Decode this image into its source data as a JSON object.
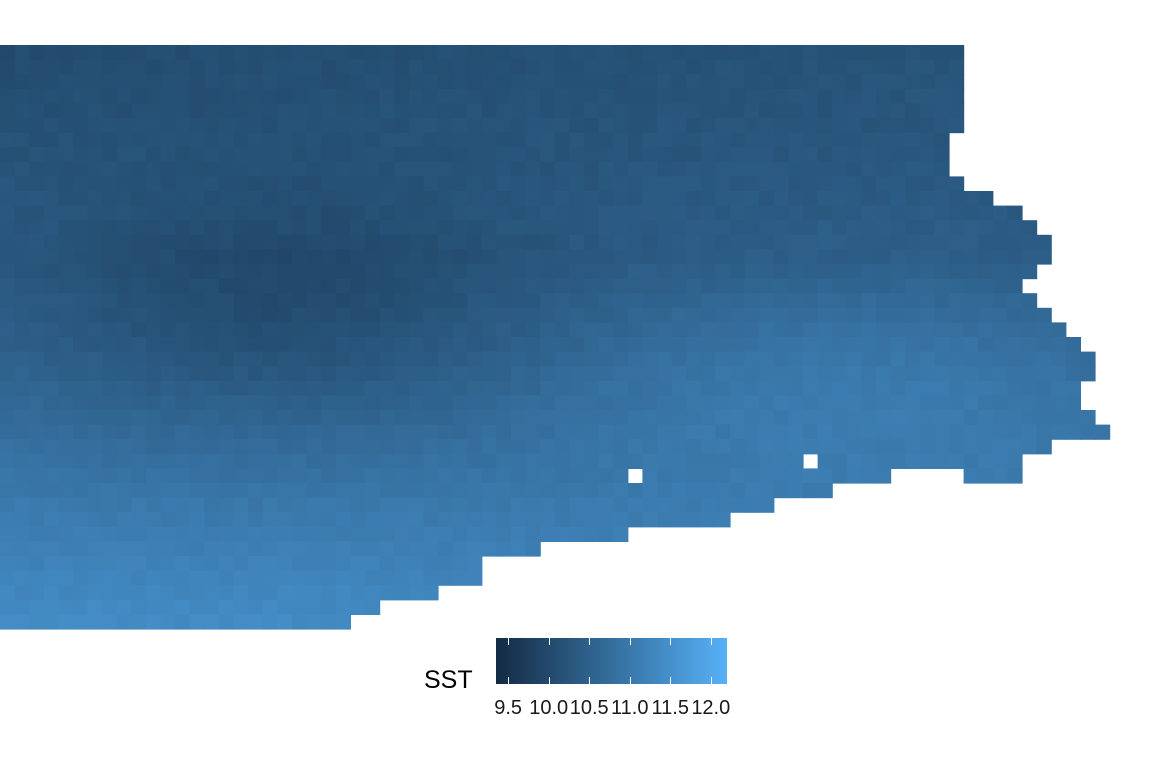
{
  "chart_data": {
    "type": "heatmap",
    "title": "",
    "xlabel": "",
    "ylabel": "",
    "grid": false,
    "value_range": [
      9.35,
      12.2
    ],
    "color_low": "#132b43",
    "color_high": "#56b1f7",
    "legend": {
      "title": "SST",
      "placement": "bottom",
      "ticks": [
        9.5,
        10.0,
        10.5,
        11.0,
        11.5,
        12.0
      ],
      "tick_labels": [
        "9.5",
        "10.0",
        "10.5",
        "11.0",
        "11.5",
        "12.0"
      ]
    }
  }
}
